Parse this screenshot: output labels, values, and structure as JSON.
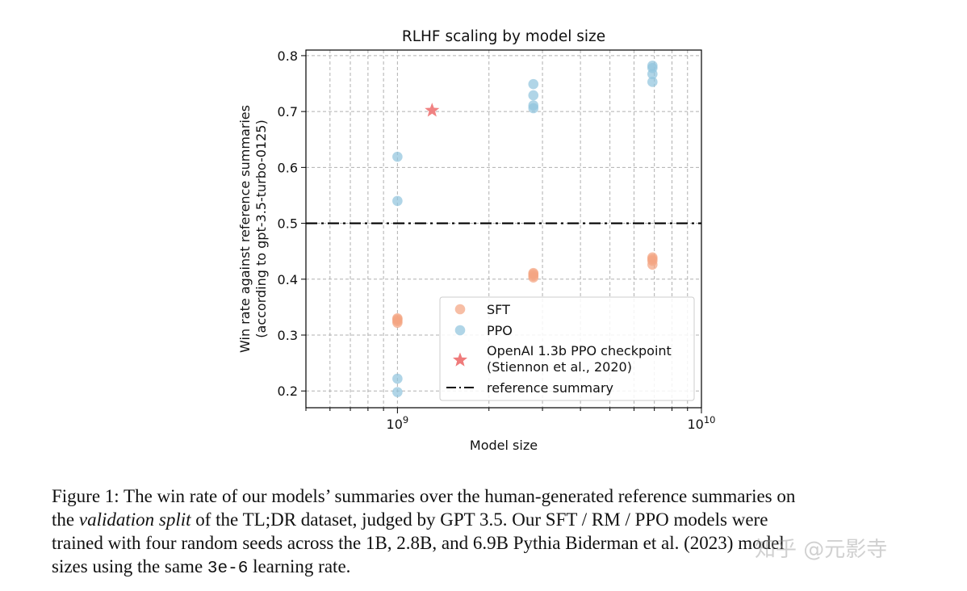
{
  "chart_data": {
    "type": "scatter",
    "title": "RLHF scaling by model size",
    "xlabel": "Model size",
    "ylabel": [
      "Win rate against reference summaries",
      "(according to gpt-3.5-turbo-0125)"
    ],
    "xscale": "log",
    "xlim": [
      500000000,
      10000000000
    ],
    "ylim": [
      0.17,
      0.81
    ],
    "yticks": [
      0.2,
      0.3,
      0.4,
      0.5,
      0.6,
      0.7,
      0.8
    ],
    "ytick_labels": [
      "0.2",
      "0.3",
      "0.4",
      "0.5",
      "0.6",
      "0.7",
      "0.8"
    ],
    "xticks_major": [
      {
        "value": 1000000000,
        "base": "10",
        "exp": "9"
      },
      {
        "value": 10000000000,
        "base": "10",
        "exp": "10"
      }
    ],
    "xticks_minor": [
      500000000,
      600000000,
      700000000,
      800000000,
      900000000,
      2000000000,
      3000000000,
      4000000000,
      5000000000,
      6000000000,
      7000000000,
      8000000000,
      9000000000
    ],
    "grid": true,
    "legend_position": "lower-right",
    "series": [
      {
        "name": "SFT",
        "marker": "circle",
        "color": "#f4a582",
        "points": [
          {
            "x": 1000000000,
            "y": 0.322
          },
          {
            "x": 1000000000,
            "y": 0.325
          },
          {
            "x": 1000000000,
            "y": 0.328
          },
          {
            "x": 1000000000,
            "y": 0.33
          },
          {
            "x": 2800000000,
            "y": 0.403
          },
          {
            "x": 2800000000,
            "y": 0.406
          },
          {
            "x": 2800000000,
            "y": 0.409
          },
          {
            "x": 2800000000,
            "y": 0.411
          },
          {
            "x": 6900000000,
            "y": 0.426
          },
          {
            "x": 6900000000,
            "y": 0.433
          },
          {
            "x": 6900000000,
            "y": 0.436
          },
          {
            "x": 6900000000,
            "y": 0.439
          }
        ]
      },
      {
        "name": "PPO",
        "marker": "circle",
        "color": "#92c5de",
        "points": [
          {
            "x": 1000000000,
            "y": 0.198
          },
          {
            "x": 1000000000,
            "y": 0.222
          },
          {
            "x": 1000000000,
            "y": 0.54
          },
          {
            "x": 1000000000,
            "y": 0.619
          },
          {
            "x": 2800000000,
            "y": 0.706
          },
          {
            "x": 2800000000,
            "y": 0.711
          },
          {
            "x": 2800000000,
            "y": 0.729
          },
          {
            "x": 2800000000,
            "y": 0.749
          },
          {
            "x": 6900000000,
            "y": 0.753
          },
          {
            "x": 6900000000,
            "y": 0.767
          },
          {
            "x": 6900000000,
            "y": 0.778
          },
          {
            "x": 6900000000,
            "y": 0.782
          }
        ]
      },
      {
        "name": "OpenAI 1.3b PPO checkpoint",
        "name_line2": "(Stiennon et al., 2020)",
        "marker": "star",
        "color": "#ef7b7b",
        "points": [
          {
            "x": 1300000000,
            "y": 0.702
          }
        ]
      }
    ],
    "reference_line": {
      "name": "reference summary",
      "y": 0.5,
      "style": "dashdot",
      "color": "#000000"
    }
  },
  "caption": {
    "line1": "Figure 1: The win rate of our models’ summaries over the human-generated reference summaries on",
    "line2_pre": "the ",
    "line2_em": "validation split",
    "line2_post": " of the TL;DR dataset, judged by GPT 3.5.  Our SFT / RM / PPO models were",
    "line3": "trained with four random seeds across the 1B, 2.8B, and 6.9B Pythia Biderman et al. (2023) model",
    "line4_pre": "sizes using the same ",
    "line4_code": "3e-6",
    "line4_post": " learning rate."
  },
  "watermark": "知乎 @元影寺"
}
